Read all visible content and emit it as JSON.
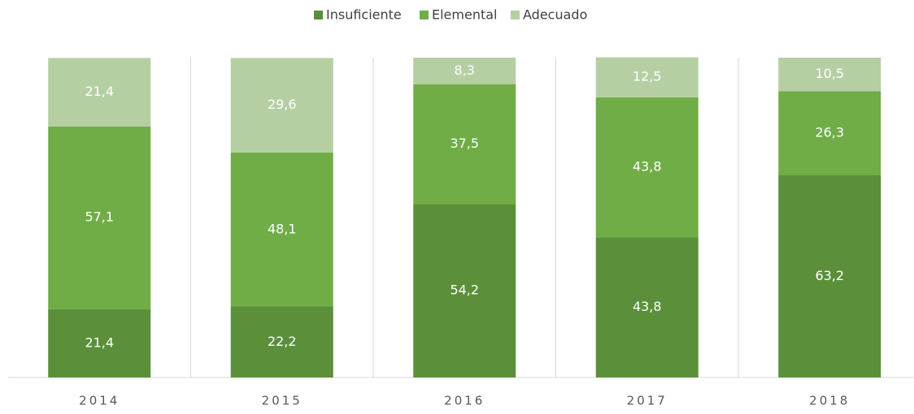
{
  "chart_data": {
    "type": "stacked_bar",
    "categories": [
      "2014",
      "2015",
      "2016",
      "2017",
      "2018"
    ],
    "series": [
      {
        "name": "Insuficiente",
        "color": "#5b8f3a",
        "values": [
          21.4,
          22.2,
          54.2,
          43.8,
          63.2
        ],
        "value_labels": [
          "21,4",
          "22,2",
          "54,2",
          "43,8",
          "63,2"
        ]
      },
      {
        "name": "Elemental",
        "color": "#70ad47",
        "values": [
          57.1,
          48.1,
          37.5,
          43.8,
          26.3
        ],
        "value_labels": [
          "57,1",
          "48,1",
          "37,5",
          "43,8",
          "26,3"
        ]
      },
      {
        "name": "Adecuado",
        "color": "#b5cfa3",
        "values": [
          21.4,
          29.6,
          8.3,
          12.5,
          10.5
        ],
        "value_labels": [
          "21,4",
          "29,6",
          "8,3",
          "12,5",
          "10,5"
        ]
      }
    ],
    "ylim": [
      0,
      100
    ],
    "legend": "top"
  }
}
